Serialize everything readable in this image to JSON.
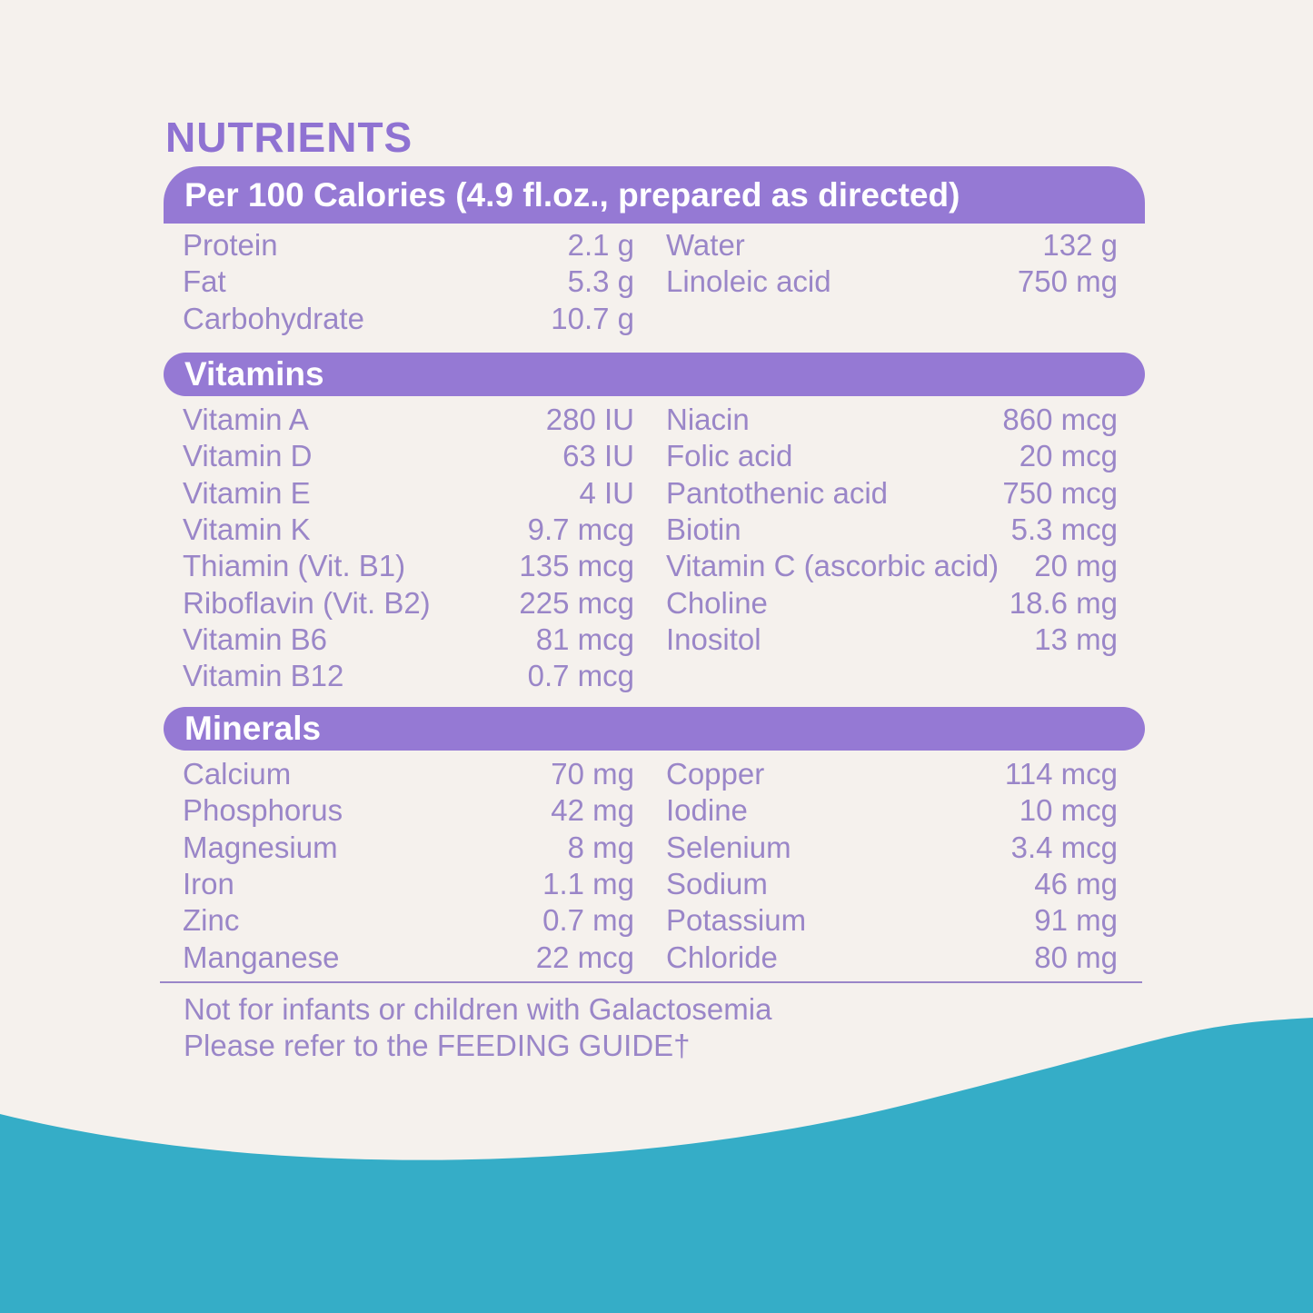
{
  "title": "NUTRIENTS",
  "sections": [
    {
      "header": "Per 100 Calories (4.9 fl.oz., prepared as directed)",
      "left": [
        [
          "Protein",
          "2.1 g"
        ],
        [
          "Fat",
          "5.3 g"
        ],
        [
          "Carbohydrate",
          "10.7 g"
        ]
      ],
      "right": [
        [
          "Water",
          "132 g"
        ],
        [
          "Linoleic acid",
          "750 mg"
        ]
      ]
    },
    {
      "header": "Vitamins",
      "left": [
        [
          "Vitamin A",
          "280 IU"
        ],
        [
          "Vitamin D",
          "63 IU"
        ],
        [
          "Vitamin E",
          "4 IU"
        ],
        [
          "Vitamin K",
          "9.7 mcg"
        ],
        [
          "Thiamin (Vit. B1)",
          "135 mcg"
        ],
        [
          "Riboflavin (Vit. B2)",
          "225 mcg"
        ],
        [
          "Vitamin B6",
          "81 mcg"
        ],
        [
          "Vitamin B12",
          "0.7 mcg"
        ]
      ],
      "right": [
        [
          "Niacin",
          "860 mcg"
        ],
        [
          "Folic acid",
          "20 mcg"
        ],
        [
          "Pantothenic acid",
          "750 mcg"
        ],
        [
          "Biotin",
          "5.3 mcg"
        ],
        [
          "Vitamin C (ascorbic acid)",
          "20 mg"
        ],
        [
          "Choline",
          "18.6 mg"
        ],
        [
          "Inositol",
          "13 mg"
        ]
      ]
    },
    {
      "header": "Minerals",
      "left": [
        [
          "Calcium",
          "70 mg"
        ],
        [
          "Phosphorus",
          "42 mg"
        ],
        [
          "Magnesium",
          "8 mg"
        ],
        [
          "Iron",
          "1.1 mg"
        ],
        [
          "Zinc",
          "0.7 mg"
        ],
        [
          "Manganese",
          "22 mcg"
        ]
      ],
      "right": [
        [
          "Copper",
          "114 mcg"
        ],
        [
          "Iodine",
          "10 mcg"
        ],
        [
          "Selenium",
          "3.4 mcg"
        ],
        [
          "Sodium",
          "46 mg"
        ],
        [
          "Potassium",
          "91 mg"
        ],
        [
          "Chloride",
          "80 mg"
        ]
      ]
    }
  ],
  "footer": [
    "Not for infants or children with Galactosemia",
    "Please refer to the FEEDING GUIDE†"
  ]
}
